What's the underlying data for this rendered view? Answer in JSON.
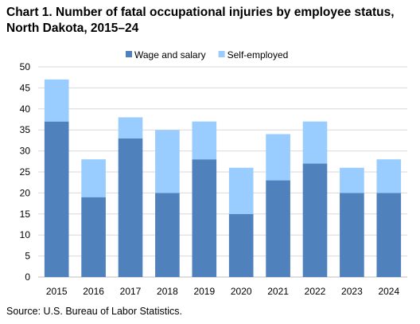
{
  "title_line1": "Chart 1. Number of fatal occupational injuries by employee status,",
  "title_line2": "North Dakota, 2015–24",
  "source": "Source: U.S. Bureau of Labor Statistics.",
  "colors": {
    "wage_and_salary": "#4f81bd",
    "self_employed": "#99ccff",
    "gridline": "#d9d9d9",
    "axis": "#bfbfbf"
  },
  "chart_data": {
    "type": "bar",
    "stacked": true,
    "title": "Chart 1. Number of fatal occupational injuries by employee status, North Dakota, 2015–24",
    "xlabel": "",
    "ylabel": "",
    "ylim": [
      0,
      50
    ],
    "yticks": [
      0,
      5,
      10,
      15,
      20,
      25,
      30,
      35,
      40,
      45,
      50
    ],
    "grid": true,
    "legend_position": "top-center",
    "categories": [
      "2015",
      "2016",
      "2017",
      "2018",
      "2019",
      "2020",
      "2021",
      "2022",
      "2023",
      "2024"
    ],
    "series": [
      {
        "name": "Wage and salary",
        "values": [
          37,
          19,
          33,
          20,
          28,
          15,
          23,
          27,
          20,
          20
        ]
      },
      {
        "name": "Self-employed",
        "values": [
          10,
          9,
          5,
          15,
          9,
          11,
          11,
          10,
          6,
          8
        ]
      }
    ]
  }
}
